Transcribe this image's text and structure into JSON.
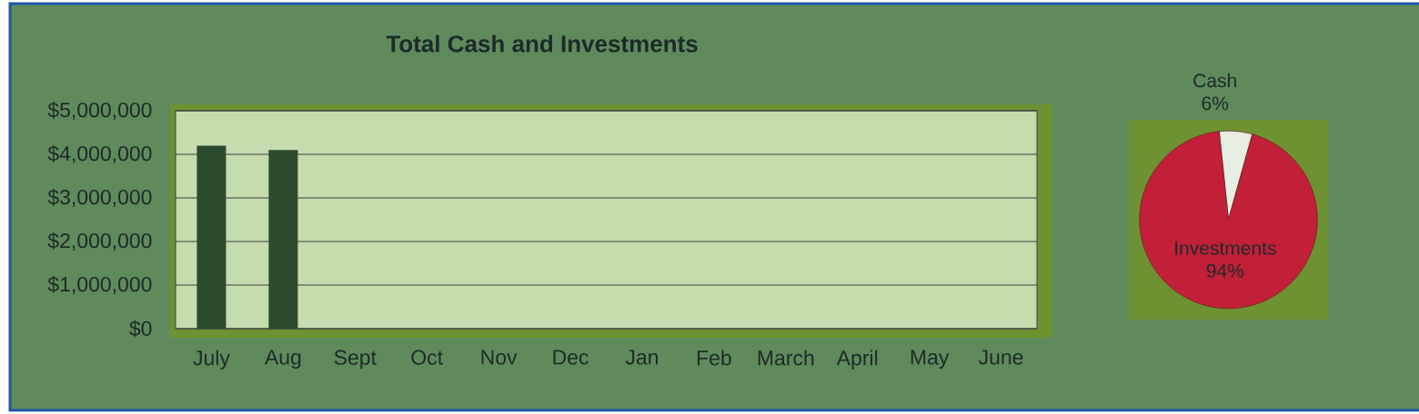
{
  "chart_data": [
    {
      "type": "bar",
      "title": "Total Cash and Investments",
      "categories": [
        "July",
        "Aug",
        "Sept",
        "Oct",
        "Nov",
        "Dec",
        "Jan",
        "Feb",
        "March",
        "April",
        "May",
        "June"
      ],
      "values": [
        4200000,
        4100000,
        null,
        null,
        null,
        null,
        null,
        null,
        null,
        null,
        null,
        null
      ],
      "color": "#2c4a2e",
      "ylim": [
        0,
        5000000
      ],
      "yticks": [
        {
          "value": 0,
          "label": "$0"
        },
        {
          "value": 1000000,
          "label": "$1,000,000"
        },
        {
          "value": 2000000,
          "label": "$2,000,000"
        },
        {
          "value": 3000000,
          "label": "$3,000,000"
        },
        {
          "value": 4000000,
          "label": "$4,000,000"
        },
        {
          "value": 5000000,
          "label": "$5,000,000"
        }
      ],
      "grid": "y"
    },
    {
      "type": "pie",
      "categories": [
        "Cash",
        "Investments"
      ],
      "values": [
        6,
        94
      ],
      "colors": [
        "#e6eee2",
        "#c21f38"
      ],
      "value_labels": [
        "6%",
        "94%"
      ]
    }
  ]
}
